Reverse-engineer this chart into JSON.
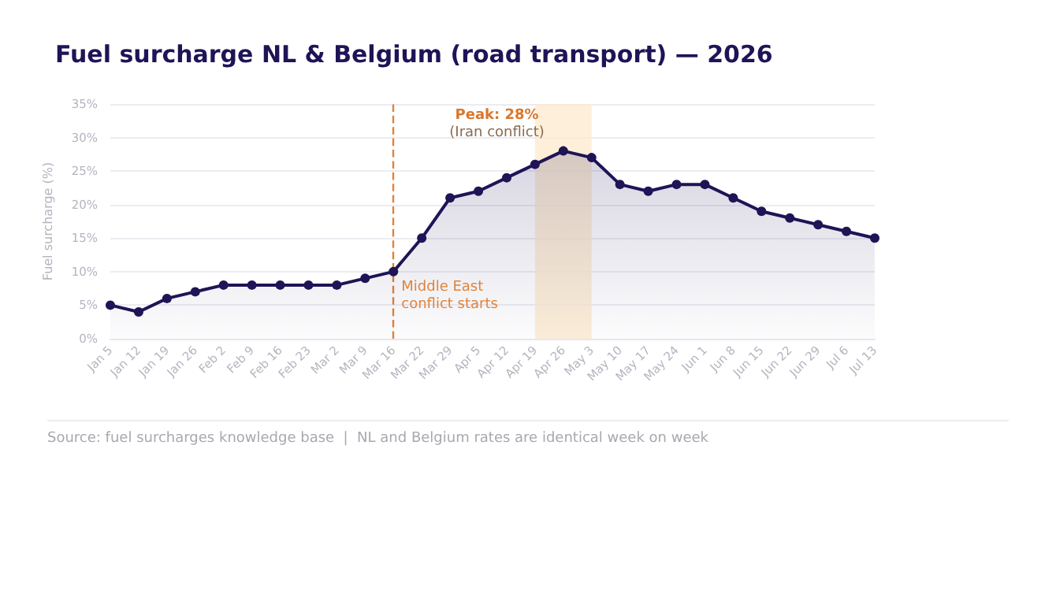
{
  "chart_data": {
    "type": "area",
    "title": "Fuel surcharge NL & Belgium (road transport) — 2026",
    "ylabel": "Fuel surcharge (%)",
    "categories": [
      "Jan 5",
      "Jan 12",
      "Jan 19",
      "Jan 26",
      "Feb 2",
      "Feb 9",
      "Feb 16",
      "Feb 23",
      "Mar 2",
      "Mar 9",
      "Mar 16",
      "Mar 22",
      "Mar 29",
      "Apr 5",
      "Apr 12",
      "Apr 19",
      "Apr 26",
      "May 3",
      "May 10",
      "May 17",
      "May 24",
      "Jun 1",
      "Jun 8",
      "Jun 15",
      "Jun 22",
      "Jun 29",
      "Jul 6",
      "Jul 13"
    ],
    "series": [
      {
        "color": "#1e1456",
        "values": [
          5,
          4,
          6,
          7,
          8,
          8,
          8,
          8,
          8,
          9,
          10,
          15,
          21,
          22,
          24,
          26,
          28,
          27,
          23,
          22,
          23,
          23,
          21,
          19,
          18,
          17,
          16,
          15
        ]
      }
    ],
    "ylim": [
      0,
      35
    ],
    "yticks": [
      {
        "value": 0,
        "label": "0%"
      },
      {
        "value": 5,
        "label": "5%"
      },
      {
        "value": 10,
        "label": "10%"
      },
      {
        "value": 15,
        "label": "15%"
      },
      {
        "value": 20,
        "label": "20%"
      },
      {
        "value": 25,
        "label": "25%"
      },
      {
        "value": 30,
        "label": "30%"
      },
      {
        "value": 35,
        "label": "35%"
      }
    ],
    "grid": "y",
    "marker": "circle",
    "line_style": "solid",
    "ref_lines": [
      {
        "axis": "x",
        "value": "Mar 16",
        "label": "Middle East conflict starts",
        "color": "#e0833a",
        "line_style": "dashed"
      }
    ],
    "bands": [
      {
        "axis": "x",
        "from": "Apr 19",
        "to": "May 3",
        "color": "#fdebd0"
      }
    ],
    "annotations": [
      {
        "text": "Peak: 28%\n(Iran conflict)",
        "x": "Apr 26",
        "y": 28
      },
      "Source: fuel surcharges knowledge base  |  NL and Belgium rates are identical week on week"
    ]
  }
}
